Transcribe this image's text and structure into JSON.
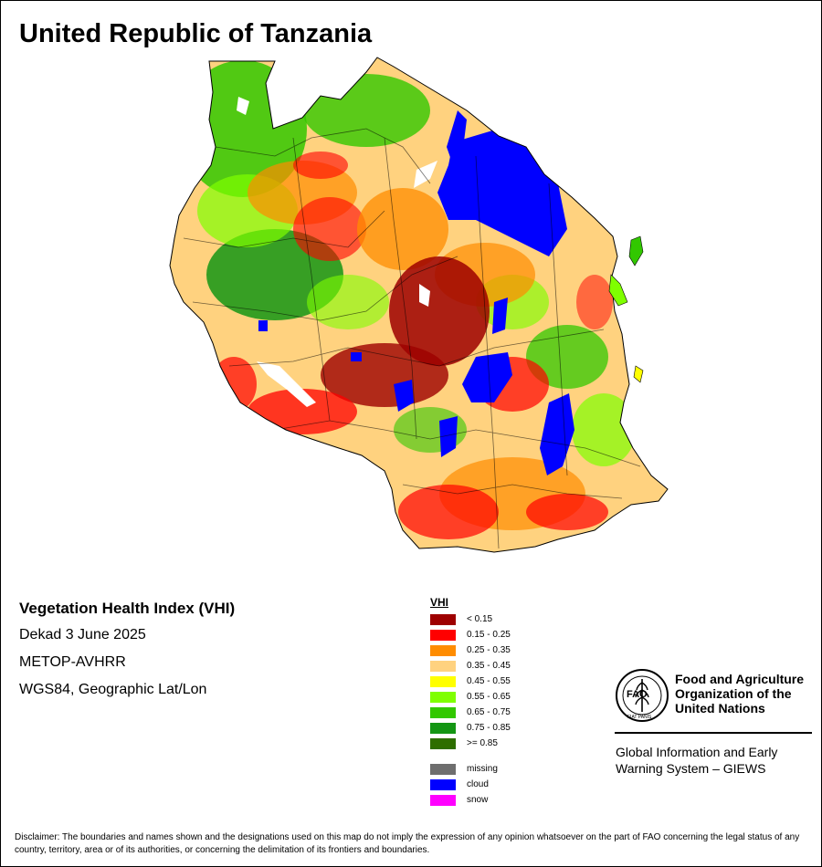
{
  "title": "United Republic of Tanzania",
  "info": {
    "heading": "Vegetation Health Index (VHI)",
    "period": "Dekad 3 June 2025",
    "sensor": "METOP-AVHRR",
    "projection": "WGS84, Geographic Lat/Lon"
  },
  "legend": {
    "title": "VHI",
    "classes": [
      {
        "label": "< 0.15",
        "color": "#9e0000"
      },
      {
        "label": "0.15 - 0.25",
        "color": "#ff0000"
      },
      {
        "label": "0.25 - 0.35",
        "color": "#ff8c00"
      },
      {
        "label": "0.35 - 0.45",
        "color": "#ffd27f"
      },
      {
        "label": "0.45 - 0.55",
        "color": "#ffff00"
      },
      {
        "label": "0.55 - 0.65",
        "color": "#7fff00"
      },
      {
        "label": "0.65 - 0.75",
        "color": "#32c800"
      },
      {
        "label": "0.75 - 0.85",
        "color": "#149614"
      },
      {
        "label": ">= 0.85",
        "color": "#2e6e00"
      }
    ],
    "special": [
      {
        "label": "missing",
        "color": "#6e6e6e"
      },
      {
        "label": "cloud",
        "color": "#0000ff"
      },
      {
        "label": "snow",
        "color": "#ff00ff"
      }
    ]
  },
  "organization": {
    "name_line1": "Food and Agriculture",
    "name_line2": "Organization of the",
    "name_line3": "United Nations",
    "system_line1": "Global Information and Early",
    "system_line2": "Warning System – GIEWS",
    "logo_text_main": "FAO",
    "logo_text_motto": "FIAT PANIS",
    "logo_icon": "fao-wheat-logo"
  },
  "disclaimer": "Disclaimer: The boundaries and names shown and the designations used on this map do not imply the expression of any opinion whatsoever on the part of FAO concerning the legal status of any country, territory, area or of its authorities, or concerning the delimitation of its frontiers and boundaries."
}
